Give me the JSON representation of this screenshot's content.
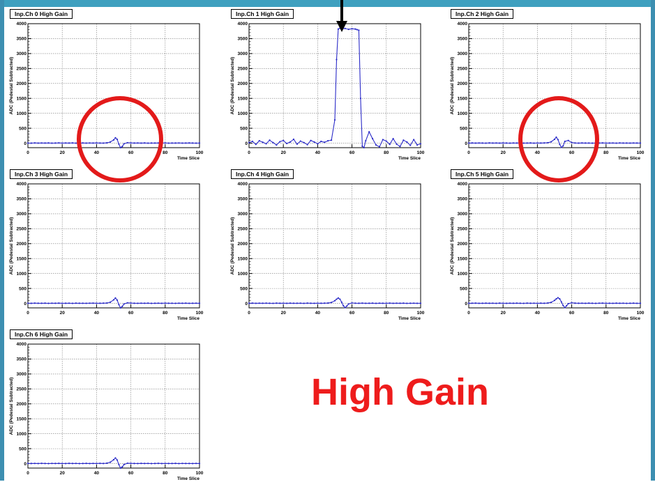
{
  "big_label": "High Gain",
  "colors": {
    "trace": "#2b2bc8",
    "highlight": "#e31a1a",
    "label": "#ee1c1c",
    "frame": "#3fa0bf"
  },
  "icons": {
    "arrow": "down-arrow-icon",
    "circle": "highlight-circle-icon"
  },
  "chart_data": [
    {
      "type": "line",
      "title": "Inp.Ch 0 High Gain",
      "xlabel": "Time Slice",
      "ylabel": "ADC (Pedestal Subtracted)",
      "xlim": [
        0,
        100
      ],
      "ylim": [
        -150,
        4000
      ],
      "xticks": [
        0,
        20,
        40,
        60,
        80,
        100
      ],
      "yticks": [
        0,
        500,
        1000,
        1500,
        2000,
        2500,
        3000,
        3500,
        4000
      ],
      "grid": true,
      "x": [
        0,
        2,
        4,
        6,
        8,
        10,
        12,
        14,
        16,
        18,
        20,
        22,
        24,
        26,
        28,
        30,
        32,
        34,
        36,
        38,
        40,
        42,
        44,
        46,
        48,
        50,
        51,
        52,
        53,
        54,
        55,
        56,
        58,
        60,
        62,
        64,
        66,
        68,
        70,
        72,
        74,
        76,
        78,
        80,
        82,
        84,
        86,
        88,
        90,
        92,
        94,
        96,
        98,
        100
      ],
      "y": [
        5,
        2,
        8,
        3,
        6,
        4,
        7,
        2,
        5,
        9,
        3,
        6,
        4,
        8,
        2,
        5,
        7,
        3,
        6,
        4,
        8,
        5,
        3,
        10,
        40,
        110,
        180,
        130,
        -30,
        -150,
        -110,
        -20,
        15,
        8,
        4,
        6,
        3,
        7,
        2,
        5,
        4,
        6,
        3,
        8,
        2,
        5,
        4,
        6,
        3,
        5,
        7,
        4,
        2,
        5
      ]
    },
    {
      "type": "line",
      "title": "Inp.Ch 1 High Gain",
      "xlabel": "Time Slice",
      "ylabel": "ADC (Pedestal Subtracted)",
      "xlim": [
        0,
        100
      ],
      "ylim": [
        -150,
        4000
      ],
      "xticks": [
        0,
        20,
        40,
        60,
        80,
        100
      ],
      "yticks": [
        0,
        500,
        1000,
        1500,
        2000,
        2500,
        3000,
        3500,
        4000
      ],
      "grid": true,
      "x": [
        0,
        2,
        4,
        6,
        8,
        10,
        12,
        14,
        16,
        18,
        20,
        22,
        24,
        26,
        28,
        30,
        32,
        34,
        36,
        38,
        40,
        42,
        44,
        46,
        48,
        50,
        51,
        52,
        53,
        54,
        56,
        58,
        60,
        62,
        63,
        64,
        65,
        66,
        67,
        68,
        70,
        72,
        74,
        76,
        78,
        80,
        82,
        84,
        86,
        88,
        90,
        92,
        94,
        96,
        98,
        100
      ],
      "y": [
        20,
        60,
        -40,
        80,
        30,
        -20,
        100,
        20,
        -60,
        50,
        90,
        -10,
        40,
        130,
        -30,
        70,
        20,
        -50,
        90,
        40,
        -20,
        60,
        30,
        80,
        100,
        780,
        2800,
        3820,
        3850,
        3830,
        3840,
        3810,
        3830,
        3820,
        3800,
        3780,
        1500,
        -100,
        -150,
        80,
        380,
        150,
        -60,
        -120,
        120,
        70,
        -40,
        150,
        -30,
        -110,
        100,
        40,
        -70,
        120,
        -60,
        -20
      ]
    },
    {
      "type": "line",
      "title": "Inp.Ch 2 High Gain",
      "xlabel": "Time Slice",
      "ylabel": "ADC (Pedestal Subtracted)",
      "xlim": [
        0,
        100
      ],
      "ylim": [
        -150,
        4000
      ],
      "xticks": [
        0,
        20,
        40,
        60,
        80,
        100
      ],
      "yticks": [
        0,
        500,
        1000,
        1500,
        2000,
        2500,
        3000,
        3500,
        4000
      ],
      "grid": true,
      "x": [
        0,
        2,
        4,
        6,
        8,
        10,
        12,
        14,
        16,
        18,
        20,
        22,
        24,
        26,
        28,
        30,
        32,
        34,
        36,
        38,
        40,
        42,
        44,
        46,
        48,
        50,
        51,
        52,
        53,
        54,
        55,
        56,
        58,
        60,
        62,
        64,
        66,
        68,
        70,
        72,
        74,
        76,
        78,
        80,
        82,
        84,
        86,
        88,
        90,
        92,
        94,
        96,
        98,
        100
      ],
      "y": [
        4,
        7,
        3,
        6,
        5,
        2,
        8,
        4,
        6,
        3,
        7,
        5,
        2,
        6,
        4,
        8,
        3,
        5,
        7,
        2,
        6,
        4,
        8,
        15,
        45,
        130,
        200,
        120,
        -40,
        -140,
        -90,
        60,
        90,
        20,
        6,
        3,
        7,
        4,
        5,
        2,
        6,
        4,
        8,
        3,
        5,
        6,
        2,
        7,
        4,
        5,
        3,
        6,
        4,
        5
      ]
    },
    {
      "type": "line",
      "title": "Inp.Ch 3 High Gain",
      "xlabel": "Time Slice",
      "ylabel": "ADC (Pedestal Subtracted)",
      "xlim": [
        0,
        100
      ],
      "ylim": [
        -150,
        4000
      ],
      "xticks": [
        0,
        20,
        40,
        60,
        80,
        100
      ],
      "yticks": [
        0,
        500,
        1000,
        1500,
        2000,
        2500,
        3000,
        3500,
        4000
      ],
      "grid": true,
      "x": [
        0,
        2,
        4,
        6,
        8,
        10,
        12,
        14,
        16,
        18,
        20,
        22,
        24,
        26,
        28,
        30,
        32,
        34,
        36,
        38,
        40,
        42,
        44,
        46,
        48,
        50,
        51,
        52,
        53,
        54,
        55,
        56,
        58,
        60,
        62,
        64,
        66,
        68,
        70,
        72,
        74,
        76,
        78,
        80,
        82,
        84,
        86,
        88,
        90,
        92,
        94,
        96,
        98,
        100
      ],
      "y": [
        6,
        3,
        8,
        4,
        5,
        7,
        2,
        6,
        4,
        8,
        3,
        5,
        6,
        2,
        7,
        4,
        5,
        3,
        6,
        8,
        4,
        5,
        7,
        12,
        40,
        120,
        180,
        110,
        -40,
        -150,
        -100,
        -20,
        18,
        10,
        5,
        3,
        6,
        4,
        7,
        2,
        5,
        6,
        3,
        8,
        4,
        5,
        2,
        6,
        4,
        7,
        3,
        5,
        6,
        4
      ]
    },
    {
      "type": "line",
      "title": "Inp.Ch 4 High Gain",
      "xlabel": "Time Slice",
      "ylabel": "ADC (Pedestal Subtracted)",
      "xlim": [
        0,
        100
      ],
      "ylim": [
        -150,
        4000
      ],
      "xticks": [
        0,
        20,
        40,
        60,
        80,
        100
      ],
      "yticks": [
        0,
        500,
        1000,
        1500,
        2000,
        2500,
        3000,
        3500,
        4000
      ],
      "grid": true,
      "x": [
        0,
        2,
        4,
        6,
        8,
        10,
        12,
        14,
        16,
        18,
        20,
        22,
        24,
        26,
        28,
        30,
        32,
        34,
        36,
        38,
        40,
        42,
        44,
        46,
        48,
        50,
        51,
        52,
        53,
        54,
        55,
        56,
        57,
        58,
        60,
        62,
        64,
        66,
        68,
        70,
        72,
        74,
        76,
        78,
        80,
        82,
        84,
        86,
        88,
        90,
        92,
        94,
        96,
        98,
        100
      ],
      "y": [
        5,
        8,
        3,
        6,
        4,
        7,
        5,
        2,
        8,
        4,
        6,
        3,
        7,
        5,
        4,
        6,
        2,
        8,
        5,
        3,
        6,
        4,
        7,
        10,
        30,
        90,
        140,
        180,
        140,
        40,
        -80,
        -140,
        -90,
        -20,
        15,
        6,
        4,
        8,
        3,
        5,
        7,
        2,
        6,
        4,
        5,
        8,
        3,
        6,
        4,
        7,
        2,
        5,
        6,
        3,
        5
      ]
    },
    {
      "type": "line",
      "title": "Inp.Ch 5 High Gain",
      "xlabel": "Time Slice",
      "ylabel": "ADC (Pedestal Subtracted)",
      "xlim": [
        0,
        100
      ],
      "ylim": [
        -150,
        4000
      ],
      "xticks": [
        0,
        20,
        40,
        60,
        80,
        100
      ],
      "yticks": [
        0,
        500,
        1000,
        1500,
        2000,
        2500,
        3000,
        3500,
        4000
      ],
      "grid": true,
      "x": [
        0,
        2,
        4,
        6,
        8,
        10,
        12,
        14,
        16,
        18,
        20,
        22,
        24,
        26,
        28,
        30,
        32,
        34,
        36,
        38,
        40,
        42,
        44,
        46,
        48,
        50,
        51,
        52,
        53,
        54,
        55,
        56,
        57,
        58,
        60,
        62,
        64,
        66,
        68,
        70,
        72,
        74,
        76,
        78,
        80,
        82,
        84,
        86,
        88,
        90,
        92,
        94,
        96,
        98,
        100
      ],
      "y": [
        4,
        6,
        8,
        3,
        5,
        7,
        4,
        6,
        2,
        8,
        5,
        3,
        6,
        4,
        7,
        5,
        2,
        8,
        4,
        6,
        3,
        7,
        5,
        12,
        35,
        100,
        150,
        190,
        150,
        50,
        -70,
        -140,
        -80,
        -10,
        20,
        8,
        4,
        6,
        3,
        7,
        5,
        2,
        6,
        8,
        4,
        5,
        3,
        7,
        4,
        6,
        2,
        5,
        7,
        3,
        5
      ]
    },
    {
      "type": "line",
      "title": "Inp.Ch 6 High Gain",
      "xlabel": "Time Slice",
      "ylabel": "ADC (Pedestal Subtracted)",
      "xlim": [
        0,
        100
      ],
      "ylim": [
        -150,
        4000
      ],
      "xticks": [
        0,
        20,
        40,
        60,
        80,
        100
      ],
      "yticks": [
        0,
        500,
        1000,
        1500,
        2000,
        2500,
        3000,
        3500,
        4000
      ],
      "grid": true,
      "x": [
        0,
        2,
        4,
        6,
        8,
        10,
        12,
        14,
        16,
        18,
        20,
        22,
        24,
        26,
        28,
        30,
        32,
        34,
        36,
        38,
        40,
        42,
        44,
        46,
        48,
        50,
        51,
        52,
        53,
        54,
        55,
        56,
        58,
        60,
        62,
        64,
        66,
        68,
        70,
        72,
        74,
        76,
        78,
        80,
        82,
        84,
        86,
        88,
        90,
        92,
        94,
        96,
        98,
        100
      ],
      "y": [
        7,
        4,
        6,
        3,
        8,
        5,
        2,
        6,
        4,
        7,
        5,
        3,
        8,
        4,
        6,
        2,
        5,
        7,
        3,
        6,
        4,
        8,
        5,
        14,
        45,
        130,
        190,
        120,
        -30,
        -150,
        -110,
        -30,
        12,
        8,
        5,
        3,
        7,
        4,
        6,
        2,
        5,
        8,
        3,
        6,
        4,
        5,
        7,
        2,
        6,
        4,
        5,
        3,
        6,
        4
      ]
    }
  ]
}
